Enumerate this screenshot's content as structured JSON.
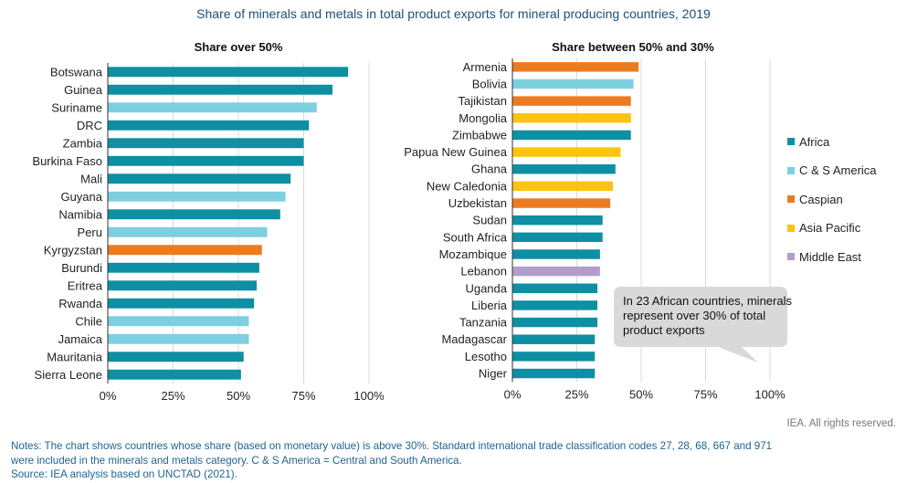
{
  "title": "Share of minerals and metals in total product exports for mineral producing countries, 2019",
  "colors": {
    "Africa": "#0e8fa3",
    "C & S America": "#7ecfe0",
    "Caspian": "#ec7b1f",
    "Asia Pacific": "#fdc311",
    "Middle East": "#b59dcb",
    "grid": "#d9d9d9",
    "axis": "#333333",
    "callout": "#d9d9d9"
  },
  "legend": {
    "items": [
      {
        "label": "Africa",
        "color": "#0e8fa3"
      },
      {
        "label": "C & S America",
        "color": "#7ecfe0"
      },
      {
        "label": "Caspian",
        "color": "#ec7b1f"
      },
      {
        "label": "Asia Pacific",
        "color": "#fdc311"
      },
      {
        "label": "Middle East",
        "color": "#b59dcb"
      }
    ]
  },
  "callout": {
    "text": "In 23 African countries, minerals represent over 30% of total product exports"
  },
  "rights": "IEA. All rights reserved.",
  "notes": {
    "line1": "Notes: The chart shows countries whose share (based on monetary value) is above 30%. Standard international trade classification codes 27, 28, 68, 667 and 971",
    "line2": "were included in the minerals and metals category. C & S America = Central and South America.",
    "source": "Source: IEA analysis based on UNCTAD (2021)."
  },
  "chart_data": [
    {
      "type": "bar",
      "orientation": "horizontal",
      "title": "Share over 50%",
      "xlim": [
        0,
        100
      ],
      "ticks": [
        "0%",
        "25%",
        "50%",
        "75%",
        "100%"
      ],
      "tick_values": [
        0,
        25,
        50,
        75,
        100
      ],
      "categories": [
        "Botswana",
        "Guinea",
        "Suriname",
        "DRC",
        "Zambia",
        "Burkina Faso",
        "Mali",
        "Guyana",
        "Namibia",
        "Peru",
        "Kyrgyzstan",
        "Burundi",
        "Eritrea",
        "Rwanda",
        "Chile",
        "Jamaica",
        "Mauritania",
        "Sierra Leone"
      ],
      "values": [
        92,
        86,
        80,
        77,
        75,
        75,
        70,
        68,
        66,
        61,
        59,
        58,
        57,
        56,
        54,
        54,
        52,
        51
      ],
      "groups": [
        "Africa",
        "Africa",
        "C & S America",
        "Africa",
        "Africa",
        "Africa",
        "Africa",
        "C & S America",
        "Africa",
        "C & S America",
        "Caspian",
        "Africa",
        "Africa",
        "Africa",
        "C & S America",
        "C & S America",
        "Africa",
        "Africa"
      ]
    },
    {
      "type": "bar",
      "orientation": "horizontal",
      "title": "Share between 50% and 30%",
      "xlim": [
        0,
        100
      ],
      "ticks": [
        "0%",
        "25%",
        "50%",
        "75%",
        "100%"
      ],
      "tick_values": [
        0,
        25,
        50,
        75,
        100
      ],
      "categories": [
        "Armenia",
        "Bolivia",
        "Tajikistan",
        "Mongolia",
        "Zimbabwe",
        "Papua New Guinea",
        "Ghana",
        "New Caledonia",
        "Uzbekistan",
        "Sudan",
        "South Africa",
        "Mozambique",
        "Lebanon",
        "Uganda",
        "Liberia",
        "Tanzania",
        "Madagascar",
        "Lesotho",
        "Niger"
      ],
      "values": [
        49,
        47,
        46,
        46,
        46,
        42,
        40,
        39,
        38,
        35,
        35,
        34,
        34,
        33,
        33,
        33,
        32,
        32,
        32
      ],
      "groups": [
        "Caspian",
        "C & S America",
        "Caspian",
        "Asia Pacific",
        "Africa",
        "Asia Pacific",
        "Africa",
        "Asia Pacific",
        "Caspian",
        "Africa",
        "Africa",
        "Africa",
        "Middle East",
        "Africa",
        "Africa",
        "Africa",
        "Africa",
        "Africa",
        "Africa"
      ]
    }
  ]
}
